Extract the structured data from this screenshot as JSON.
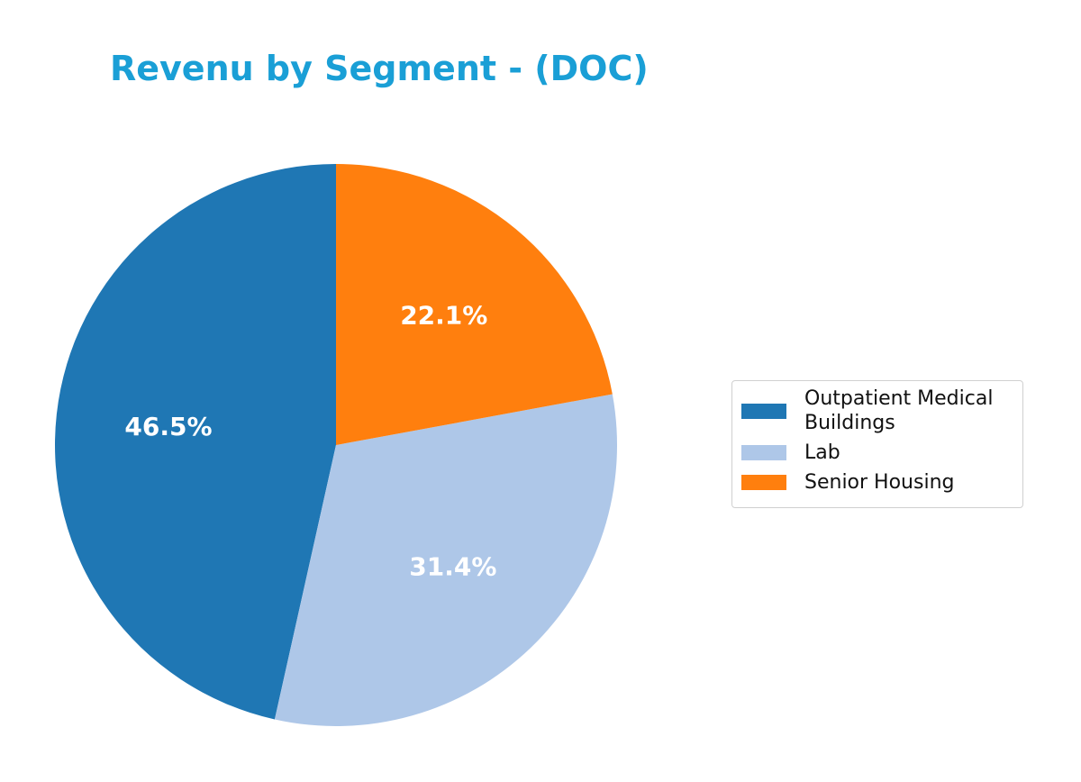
{
  "chart_data": {
    "type": "pie",
    "title": "Revenu by Segment - (DOC)",
    "categories": [
      "Outpatient Medical Buildings",
      "Lab",
      "Senior Housing"
    ],
    "values": [
      46.5,
      31.4,
      22.1
    ],
    "labels": [
      "46.5%",
      "31.4%",
      "22.1%"
    ],
    "colors": [
      "#1f77b4",
      "#aec7e8",
      "#ff7f0e"
    ],
    "start_angle_deg": 90,
    "direction": "counterclockwise",
    "legend_placement": "center-right"
  }
}
